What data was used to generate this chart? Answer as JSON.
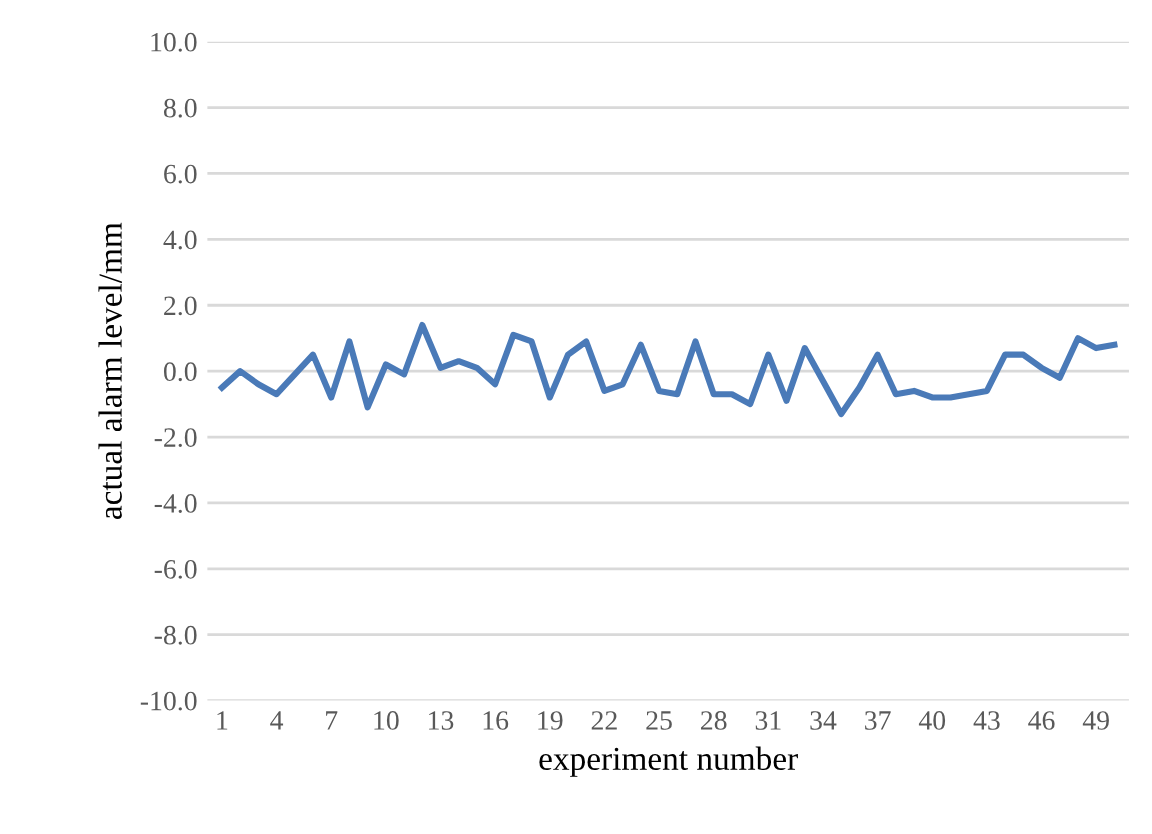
{
  "chart_data": {
    "type": "line",
    "xlabel": "experiment number",
    "ylabel": "actual alarm level/mm",
    "categories": [
      "1",
      null,
      null,
      "4",
      null,
      null,
      "7",
      null,
      null,
      "10",
      null,
      null,
      "13",
      null,
      null,
      "16",
      null,
      null,
      "19",
      null,
      null,
      "22",
      null,
      null,
      "25",
      null,
      null,
      "28",
      null,
      null,
      "31",
      null,
      null,
      "34",
      null,
      null,
      "37",
      null,
      null,
      "40",
      null,
      null,
      "43",
      null,
      null,
      "46",
      null,
      null,
      "49",
      null
    ],
    "series": [
      {
        "color": "#4a7ab8",
        "values": [
          -0.5,
          0.0,
          -0.4,
          -0.7,
          -0.1,
          0.5,
          -0.8,
          0.9,
          -1.1,
          0.2,
          -0.1,
          1.4,
          0.1,
          0.3,
          0.1,
          -0.4,
          1.1,
          0.9,
          -0.8,
          0.5,
          0.9,
          -0.6,
          -0.4,
          0.8,
          -0.6,
          -0.7,
          0.9,
          -0.7,
          -0.7,
          -1.0,
          0.5,
          -0.9,
          0.7,
          -0.3,
          -1.3,
          -0.5,
          0.5,
          -0.7,
          -0.6,
          -0.8,
          -0.8,
          -0.7,
          -0.6,
          0.5,
          0.5,
          0.1,
          -0.2,
          1.0,
          0.7,
          0.8
        ]
      }
    ],
    "ylim": [
      -10,
      10
    ],
    "yticks": [
      {
        "value": -10,
        "label": "-10.0"
      },
      {
        "value": -8,
        "label": "-8.0"
      },
      {
        "value": -6,
        "label": "-6.0"
      },
      {
        "value": -4,
        "label": "-4.0"
      },
      {
        "value": -2,
        "label": "-2.0"
      },
      {
        "value": 0,
        "label": "0.0"
      },
      {
        "value": 2,
        "label": "2.0"
      },
      {
        "value": 4,
        "label": "4.0"
      },
      {
        "value": 6,
        "label": "6.0"
      },
      {
        "value": 8,
        "label": "8.0"
      },
      {
        "value": 10,
        "label": "10.0"
      }
    ],
    "grid": "y",
    "marker": "none",
    "line_style": "solid",
    "legend": false
  }
}
